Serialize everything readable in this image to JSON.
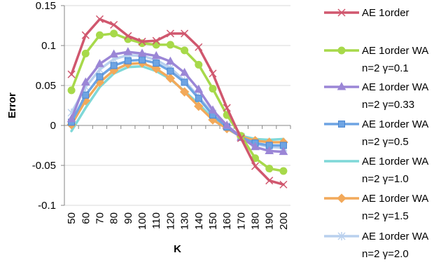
{
  "chart_data": {
    "type": "line",
    "xlabel": "K",
    "ylabel": "Error",
    "ylim": [
      -0.1,
      0.15
    ],
    "yticks": [
      "0.15",
      "0.1",
      "0.05",
      "0",
      "-0.05",
      "-0.1"
    ],
    "ytick_values": [
      0.15,
      0.1,
      0.05,
      0,
      -0.05,
      -0.1
    ],
    "x": [
      50,
      60,
      70,
      80,
      90,
      100,
      110,
      120,
      130,
      140,
      150,
      160,
      170,
      180,
      190,
      200
    ],
    "xticks": [
      "50",
      "60",
      "70",
      "80",
      "90",
      "100",
      "110",
      "120",
      "130",
      "140",
      "150",
      "160",
      "170",
      "180",
      "190",
      "200"
    ],
    "grid": "horizontal",
    "legend_position": "right",
    "series": [
      {
        "name": "AE 1order",
        "name_lines": [
          "AE 1order"
        ],
        "color": "#d0576e",
        "marker": "x",
        "values": [
          0.064,
          0.113,
          0.133,
          0.126,
          0.112,
          0.105,
          0.106,
          0.115,
          0.115,
          0.098,
          0.065,
          0.022,
          -0.016,
          -0.051,
          -0.069,
          -0.074
        ]
      },
      {
        "name": "AE 1order WA n=2 γ=0.1",
        "name_lines": [
          "AE 1order WA",
          "n=2 γ=0.1"
        ],
        "color": "#a7d94a",
        "marker": "circle",
        "values": [
          0.044,
          0.09,
          0.113,
          0.115,
          0.108,
          0.103,
          0.101,
          0.101,
          0.094,
          0.076,
          0.046,
          0.013,
          -0.013,
          -0.041,
          -0.054,
          -0.057
        ]
      },
      {
        "name": "AE 1order WA n=2 γ=0.33",
        "name_lines": [
          "AE 1order WA",
          "n=2 γ=0.33"
        ],
        "color": "#9b86d6",
        "marker": "triangle",
        "values": [
          0.008,
          0.054,
          0.077,
          0.089,
          0.092,
          0.09,
          0.087,
          0.08,
          0.066,
          0.045,
          0.019,
          0.0,
          -0.015,
          -0.027,
          -0.032,
          -0.033
        ]
      },
      {
        "name": "AE 1order WA n=2 γ=0.5",
        "name_lines": [
          "AE 1order WA",
          "n=2 γ=0.5"
        ],
        "color": "#6ea4e3",
        "marker": "square",
        "values": [
          0.004,
          0.038,
          0.061,
          0.075,
          0.081,
          0.082,
          0.078,
          0.068,
          0.054,
          0.034,
          0.013,
          -0.002,
          -0.015,
          -0.022,
          -0.025,
          -0.025
        ]
      },
      {
        "name": "AE 1order WA n=2 γ=1.0",
        "name_lines": [
          "AE 1order WA",
          "n=2 γ=1.0"
        ],
        "color": "#7fd8d8",
        "marker": "none",
        "values": [
          -0.007,
          0.022,
          0.048,
          0.065,
          0.073,
          0.074,
          0.068,
          0.058,
          0.043,
          0.027,
          0.009,
          -0.002,
          -0.013,
          -0.017,
          -0.018,
          -0.017
        ]
      },
      {
        "name": "AE 1order WA n=2 γ=1.5",
        "name_lines": [
          "AE 1order WA",
          "n=2 γ=1.5"
        ],
        "color": "#f2a95a",
        "marker": "diamond",
        "values": [
          0.001,
          0.031,
          0.054,
          0.069,
          0.077,
          0.078,
          0.071,
          0.059,
          0.042,
          0.024,
          0.007,
          -0.004,
          -0.014,
          -0.019,
          -0.021,
          -0.021
        ]
      },
      {
        "name": "AE 1order WA n=2 γ=2.0",
        "name_lines": [
          "AE 1order WA",
          "n=2 γ=2.0"
        ],
        "color": "#b9d0ee",
        "marker": "star",
        "values": [
          0.016,
          0.048,
          0.07,
          0.083,
          0.088,
          0.087,
          0.082,
          0.072,
          0.056,
          0.036,
          0.015,
          0.0,
          -0.014,
          -0.023,
          -0.027,
          -0.028
        ]
      }
    ]
  }
}
